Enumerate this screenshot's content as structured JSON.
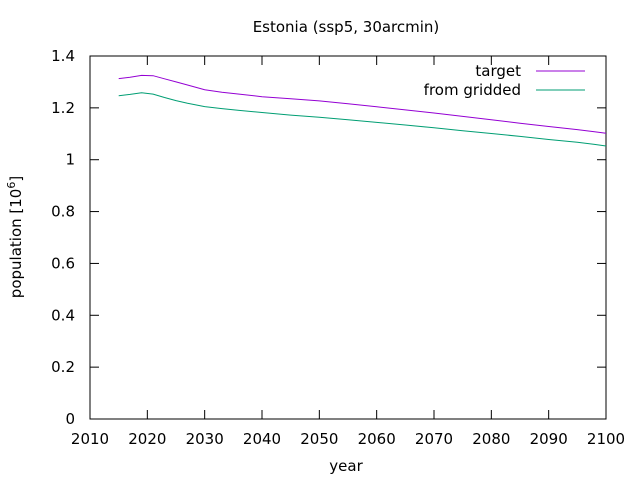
{
  "chart_data": {
    "type": "line",
    "title": "Estonia (ssp5, 30arcmin)",
    "xlabel": "year",
    "ylabel": "population [10^6]",
    "ylabel_base": "population [10",
    "ylabel_exp": "6",
    "ylabel_close": "]",
    "xlim": [
      2010,
      2100
    ],
    "ylim": [
      0,
      1.4
    ],
    "xticks": [
      2010,
      2020,
      2030,
      2040,
      2050,
      2060,
      2070,
      2080,
      2090,
      2100
    ],
    "yticks": [
      0,
      0.2,
      0.4,
      0.6,
      0.8,
      1,
      1.2,
      1.4
    ],
    "ytick_labels": [
      "0",
      "0.2",
      "0.4",
      "0.6",
      "0.8",
      "1",
      "1.2",
      "1.4"
    ],
    "grid": false,
    "legend_position": "top-right",
    "x": [
      2015,
      2017,
      2019,
      2021,
      2023,
      2025,
      2027,
      2030,
      2033,
      2036,
      2040,
      2045,
      2050,
      2055,
      2060,
      2065,
      2070,
      2075,
      2080,
      2085,
      2090,
      2095,
      2098,
      2100
    ],
    "series": [
      {
        "name": "target",
        "color": "#9400d3",
        "values": [
          1.313,
          1.318,
          1.325,
          1.324,
          1.312,
          1.3,
          1.288,
          1.27,
          1.26,
          1.253,
          1.243,
          1.235,
          1.227,
          1.216,
          1.204,
          1.192,
          1.18,
          1.167,
          1.154,
          1.141,
          1.128,
          1.116,
          1.108,
          1.102
        ]
      },
      {
        "name": "from gridded",
        "color": "#009e73",
        "values": [
          1.247,
          1.252,
          1.258,
          1.253,
          1.24,
          1.228,
          1.218,
          1.205,
          1.197,
          1.19,
          1.182,
          1.172,
          1.164,
          1.154,
          1.144,
          1.134,
          1.123,
          1.112,
          1.101,
          1.09,
          1.078,
          1.067,
          1.059,
          1.053
        ]
      }
    ]
  }
}
